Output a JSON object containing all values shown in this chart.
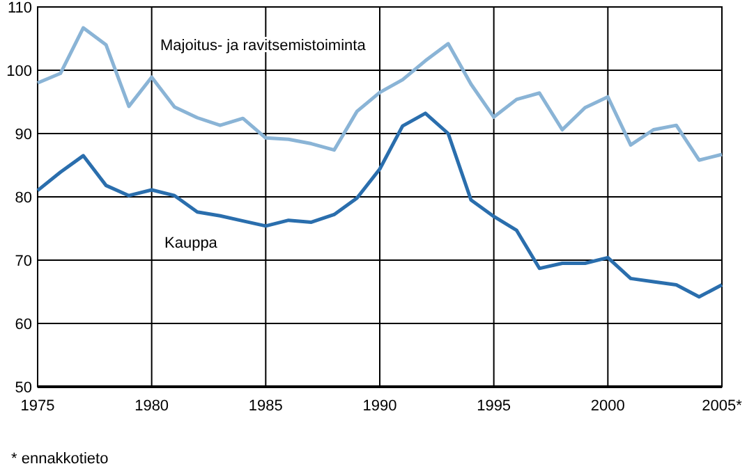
{
  "chart_data": {
    "type": "line",
    "x": [
      1975,
      1976,
      1977,
      1978,
      1979,
      1980,
      1981,
      1982,
      1983,
      1984,
      1985,
      1986,
      1987,
      1988,
      1989,
      1990,
      1991,
      1992,
      1993,
      1994,
      1995,
      1996,
      1997,
      1998,
      1999,
      2000,
      2001,
      2002,
      2003,
      2004,
      2005
    ],
    "series": [
      {
        "name": "Majoitus- ja ravitsemistoiminta",
        "color": "#8ab4d6",
        "values": [
          98,
          99.5,
          106.7,
          104,
          94.3,
          98.9,
          94.2,
          92.5,
          91.3,
          92.4,
          89.3,
          89.1,
          88.4,
          87.4,
          93.5,
          96.5,
          98.5,
          101.5,
          104.2,
          97.8,
          92.6,
          95.4,
          96.4,
          90.6,
          94.1,
          95.8,
          88.2,
          90.6,
          91.3,
          85.8,
          86.7
        ]
      },
      {
        "name": "Kauppa",
        "color": "#2a6ead",
        "values": [
          81,
          83.9,
          86.5,
          81.8,
          80.2,
          81.1,
          80.2,
          77.6,
          77,
          76.2,
          75.4,
          76.3,
          76,
          77.2,
          79.8,
          84.4,
          91.2,
          93.2,
          90,
          79.5,
          76.9,
          74.7,
          68.7,
          69.5,
          69.5,
          70.4,
          67.1,
          66.6,
          66.1,
          64.2,
          66.1
        ]
      }
    ],
    "xlim": [
      1975,
      2005
    ],
    "xticks": [
      1975,
      1980,
      1985,
      1990,
      1995,
      2000,
      {
        "value": 2005,
        "label": "2005*"
      }
    ],
    "ylim": [
      50,
      110
    ],
    "yticks": [
      50,
      60,
      70,
      80,
      90,
      100,
      110
    ],
    "grid": true,
    "marker": "none",
    "line_style": "solid",
    "annotations": [
      "* ennakkotieto"
    ]
  }
}
